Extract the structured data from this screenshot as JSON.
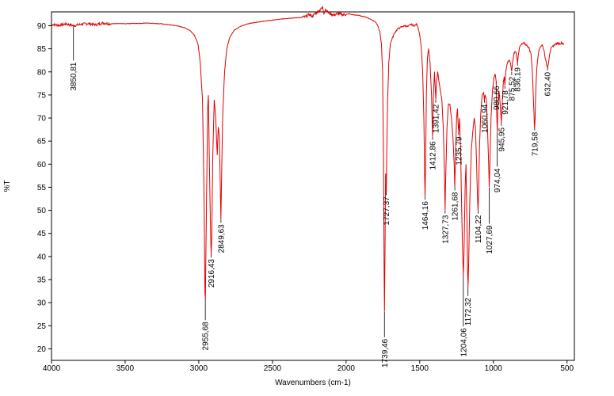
{
  "chart_data": {
    "type": "line",
    "xlabel": "Wavenumbers (cm-1)",
    "ylabel": "%T",
    "xlim": [
      4000,
      450
    ],
    "ylim": [
      17.5,
      93
    ],
    "x_ticks": [
      "4000",
      "3500",
      "3000",
      "2500",
      "2000",
      "1500",
      "1000",
      "500"
    ],
    "y_ticks": [
      "20",
      "25",
      "30",
      "35",
      "40",
      "45",
      "50",
      "55",
      "60",
      "65",
      "70",
      "75",
      "80",
      "85",
      "90"
    ],
    "grid": false,
    "line_color": "#e00000",
    "peaks": [
      {
        "label": "3850,81",
        "x": 3850.81,
        "y": 90.0
      },
      {
        "label": "2955,68",
        "x": 2955.68,
        "y": 31.0
      },
      {
        "label": "2916,43",
        "x": 2916.43,
        "y": 40.5
      },
      {
        "label": "2849,63",
        "x": 2849.63,
        "y": 48.0
      },
      {
        "label": "1739,46",
        "x": 1739.46,
        "y": 28.0
      },
      {
        "label": "1727,37",
        "x": 1727.37,
        "y": 54.0
      },
      {
        "label": "1464,16",
        "x": 1464.16,
        "y": 53.0
      },
      {
        "label": "1412,86",
        "x": 1412.86,
        "y": 66.0
      },
      {
        "label": "1391,42",
        "x": 1391.42,
        "y": 74.0
      },
      {
        "label": "1327,73",
        "x": 1327.73,
        "y": 50.0
      },
      {
        "label": "1261,68",
        "x": 1261.68,
        "y": 55.0
      },
      {
        "label": "1235,79",
        "x": 1235.79,
        "y": 67.0
      },
      {
        "label": "1204,06",
        "x": 1204.06,
        "y": 36.0
      },
      {
        "label": "1172,32",
        "x": 1172.32,
        "y": 33.5
      },
      {
        "label": "1104,22",
        "x": 1104.22,
        "y": 50.0
      },
      {
        "label": "1060,94",
        "x": 1060.94,
        "y": 74.0
      },
      {
        "label": "1027,69",
        "x": 1027.69,
        "y": 55.0
      },
      {
        "label": "980,66",
        "x": 980.66,
        "y": 78.0
      },
      {
        "label": "974,04",
        "x": 974.04,
        "y": 67.0
      },
      {
        "label": "945,95",
        "x": 945.95,
        "y": 69.0
      },
      {
        "label": "921,78",
        "x": 921.78,
        "y": 77.0
      },
      {
        "label": "875,52",
        "x": 875.52,
        "y": 80.0
      },
      {
        "label": "836,19",
        "x": 836.19,
        "y": 82.0
      },
      {
        "label": "719,58",
        "x": 719.58,
        "y": 68.0
      },
      {
        "label": "632,40",
        "x": 632.4,
        "y": 81.0
      }
    ],
    "spectrum": [
      [
        4000,
        90.3
      ],
      [
        3950,
        90.1
      ],
      [
        3900,
        90.4
      ],
      [
        3850,
        90.0
      ],
      [
        3800,
        90.3
      ],
      [
        3750,
        90.5
      ],
      [
        3700,
        90.2
      ],
      [
        3650,
        90.6
      ],
      [
        3600,
        90.4
      ],
      [
        3550,
        90.5
      ],
      [
        3500,
        90.4
      ],
      [
        3450,
        90.5
      ],
      [
        3400,
        90.5
      ],
      [
        3350,
        90.6
      ],
      [
        3300,
        90.5
      ],
      [
        3250,
        90.4
      ],
      [
        3200,
        90.2
      ],
      [
        3150,
        90.0
      ],
      [
        3100,
        89.6
      ],
      [
        3060,
        89.0
      ],
      [
        3030,
        88.0
      ],
      [
        3005,
        86.0
      ],
      [
        2990,
        82.0
      ],
      [
        2975,
        74.0
      ],
      [
        2965,
        55.0
      ],
      [
        2958,
        32.0
      ],
      [
        2955,
        31.0
      ],
      [
        2950,
        45.0
      ],
      [
        2940,
        72.0
      ],
      [
        2935,
        75.0
      ],
      [
        2928,
        60.0
      ],
      [
        2920,
        45.0
      ],
      [
        2916,
        40.5
      ],
      [
        2912,
        44.0
      ],
      [
        2905,
        62.0
      ],
      [
        2895,
        74.0
      ],
      [
        2885,
        70.0
      ],
      [
        2875,
        62.0
      ],
      [
        2868,
        68.0
      ],
      [
        2860,
        66.0
      ],
      [
        2854,
        55.0
      ],
      [
        2850,
        48.0
      ],
      [
        2846,
        55.0
      ],
      [
        2838,
        70.0
      ],
      [
        2825,
        80.0
      ],
      [
        2810,
        85.0
      ],
      [
        2790,
        87.5
      ],
      [
        2760,
        89.0
      ],
      [
        2720,
        89.8
      ],
      [
        2680,
        90.3
      ],
      [
        2640,
        90.6
      ],
      [
        2600,
        90.8
      ],
      [
        2550,
        91.0
      ],
      [
        2500,
        91.2
      ],
      [
        2450,
        91.4
      ],
      [
        2400,
        91.6
      ],
      [
        2350,
        91.7
      ],
      [
        2300,
        91.8
      ],
      [
        2270,
        92.0
      ],
      [
        2250,
        92.5
      ],
      [
        2230,
        92.0
      ],
      [
        2210,
        92.6
      ],
      [
        2190,
        93.1
      ],
      [
        2170,
        93.6
      ],
      [
        2160,
        94.0
      ],
      [
        2150,
        92.8
      ],
      [
        2140,
        93.6
      ],
      [
        2120,
        92.8
      ],
      [
        2100,
        92.5
      ],
      [
        2080,
        92.3
      ],
      [
        2060,
        92.6
      ],
      [
        2040,
        92.5
      ],
      [
        2020,
        92.4
      ],
      [
        2000,
        92.4
      ],
      [
        1980,
        92.6
      ],
      [
        1960,
        92.4
      ],
      [
        1940,
        92.3
      ],
      [
        1920,
        92.3
      ],
      [
        1900,
        92.1
      ],
      [
        1880,
        92.0
      ],
      [
        1860,
        91.8
      ],
      [
        1840,
        91.5
      ],
      [
        1820,
        91.2
      ],
      [
        1800,
        90.8
      ],
      [
        1785,
        90.0
      ],
      [
        1770,
        88.5
      ],
      [
        1760,
        86.0
      ],
      [
        1752,
        80.0
      ],
      [
        1746,
        60.0
      ],
      [
        1742,
        38.0
      ],
      [
        1739.46,
        28.0
      ],
      [
        1736,
        40.0
      ],
      [
        1732,
        58.0
      ],
      [
        1729,
        56.0
      ],
      [
        1727,
        54.0
      ],
      [
        1724,
        62.0
      ],
      [
        1718,
        74.0
      ],
      [
        1710,
        82.0
      ],
      [
        1700,
        86.0
      ],
      [
        1690,
        87.0
      ],
      [
        1670,
        88.5
      ],
      [
        1650,
        89.3
      ],
      [
        1620,
        89.8
      ],
      [
        1600,
        90.0
      ],
      [
        1580,
        89.8
      ],
      [
        1560,
        90.3
      ],
      [
        1540,
        90.0
      ],
      [
        1520,
        90.3
      ],
      [
        1510,
        89.5
      ],
      [
        1500,
        88.0
      ],
      [
        1490,
        85.5
      ],
      [
        1480,
        80.0
      ],
      [
        1472,
        70.0
      ],
      [
        1467,
        58.0
      ],
      [
        1464,
        53.0
      ],
      [
        1460,
        60.0
      ],
      [
        1455,
        75.0
      ],
      [
        1448,
        83.0
      ],
      [
        1440,
        85.0
      ],
      [
        1430,
        82.0
      ],
      [
        1420,
        75.0
      ],
      [
        1414,
        67.0
      ],
      [
        1412,
        66.0
      ],
      [
        1408,
        74.0
      ],
      [
        1400,
        80.0
      ],
      [
        1394,
        76.0
      ],
      [
        1391,
        74.0
      ],
      [
        1386,
        78.0
      ],
      [
        1378,
        80.0
      ],
      [
        1370,
        78.0
      ],
      [
        1360,
        76.0
      ],
      [
        1350,
        74.0
      ],
      [
        1340,
        68.0
      ],
      [
        1332,
        58.0
      ],
      [
        1328,
        50.0
      ],
      [
        1323,
        58.0
      ],
      [
        1315,
        68.0
      ],
      [
        1305,
        73.0
      ],
      [
        1295,
        73.0
      ],
      [
        1285,
        70.0
      ],
      [
        1275,
        66.0
      ],
      [
        1266,
        60.0
      ],
      [
        1262,
        55.0
      ],
      [
        1257,
        62.0
      ],
      [
        1250,
        70.0
      ],
      [
        1244,
        72.0
      ],
      [
        1238,
        68.0
      ],
      [
        1235,
        67.0
      ],
      [
        1230,
        70.0
      ],
      [
        1222,
        62.0
      ],
      [
        1215,
        50.0
      ],
      [
        1208,
        40.0
      ],
      [
        1204,
        36.0
      ],
      [
        1200,
        40.0
      ],
      [
        1192,
        55.0
      ],
      [
        1186,
        60.0
      ],
      [
        1180,
        48.0
      ],
      [
        1175,
        37.0
      ],
      [
        1172,
        33.5
      ],
      [
        1168,
        38.0
      ],
      [
        1160,
        52.0
      ],
      [
        1150,
        63.0
      ],
      [
        1140,
        67.0
      ],
      [
        1130,
        70.0
      ],
      [
        1122,
        68.0
      ],
      [
        1114,
        60.0
      ],
      [
        1108,
        53.0
      ],
      [
        1104,
        50.0
      ],
      [
        1100,
        54.0
      ],
      [
        1094,
        64.0
      ],
      [
        1086,
        71.0
      ],
      [
        1076,
        75.0
      ],
      [
        1066,
        75.5
      ],
      [
        1061,
        74.0
      ],
      [
        1056,
        75.0
      ],
      [
        1048,
        74.0
      ],
      [
        1040,
        68.0
      ],
      [
        1032,
        60.0
      ],
      [
        1028,
        55.0
      ],
      [
        1024,
        60.0
      ],
      [
        1016,
        70.0
      ],
      [
        1006,
        76.0
      ],
      [
        996,
        79.0
      ],
      [
        986,
        79.5
      ],
      [
        981,
        78.0
      ],
      [
        978,
        72.0
      ],
      [
        974,
        67.0
      ],
      [
        970,
        72.0
      ],
      [
        962,
        76.0
      ],
      [
        954,
        73.0
      ],
      [
        946,
        69.0
      ],
      [
        940,
        73.0
      ],
      [
        932,
        78.0
      ],
      [
        926,
        79.0
      ],
      [
        922,
        77.0
      ],
      [
        916,
        80.0
      ],
      [
        905,
        82.0
      ],
      [
        893,
        82.5
      ],
      [
        884,
        82.0
      ],
      [
        876,
        80.0
      ],
      [
        870,
        82.0
      ],
      [
        860,
        84.0
      ],
      [
        850,
        84.5
      ],
      [
        842,
        83.5
      ],
      [
        836,
        82.0
      ],
      [
        830,
        84.0
      ],
      [
        820,
        85.5
      ],
      [
        805,
        86.0
      ],
      [
        790,
        86.2
      ],
      [
        775,
        85.8
      ],
      [
        760,
        85.3
      ],
      [
        745,
        84.0
      ],
      [
        735,
        80.0
      ],
      [
        727,
        73.0
      ],
      [
        722,
        69.0
      ],
      [
        720,
        68.0
      ],
      [
        717,
        70.0
      ],
      [
        712,
        76.0
      ],
      [
        705,
        81.0
      ],
      [
        695,
        84.0
      ],
      [
        682,
        85.5
      ],
      [
        668,
        85.8
      ],
      [
        655,
        84.5
      ],
      [
        645,
        82.5
      ],
      [
        638,
        81.5
      ],
      [
        632,
        81.0
      ],
      [
        626,
        82.0
      ],
      [
        618,
        84.0
      ],
      [
        608,
        85.0
      ],
      [
        595,
        85.6
      ],
      [
        580,
        86.0
      ],
      [
        565,
        86.2
      ],
      [
        550,
        86.1
      ],
      [
        535,
        86.3
      ],
      [
        520,
        86.0
      ]
    ]
  }
}
